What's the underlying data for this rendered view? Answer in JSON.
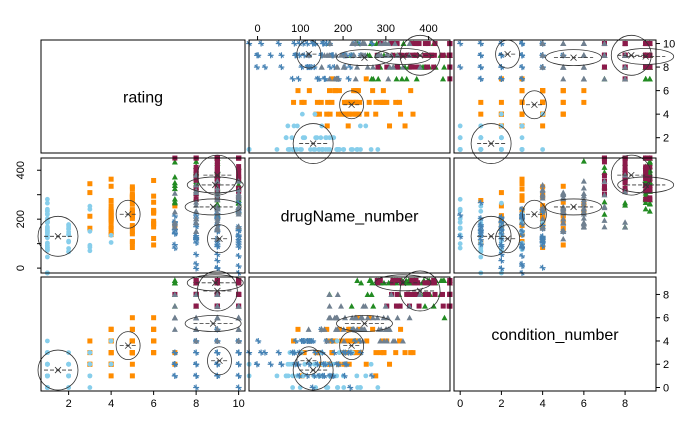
{
  "chart_data": {
    "type": "scatter",
    "variables": [
      "rating",
      "drugName_number",
      "condition_number"
    ],
    "axes": {
      "rating": {
        "ticks": [
          2,
          4,
          6,
          8,
          10
        ],
        "lim": [
          0.7,
          10.3
        ]
      },
      "drugName_number": {
        "ticks": [
          0,
          100,
          200,
          300,
          400
        ],
        "lim": [
          -20,
          450
        ]
      },
      "condition_number": {
        "ticks": [
          0,
          2,
          4,
          6,
          8
        ],
        "lim": [
          -0.3,
          9.5
        ]
      }
    },
    "groups": [
      {
        "color": "#ff8c00",
        "marker": "square",
        "center": {
          "rating": 4.8,
          "drugName_number": 220,
          "condition_number": 3.6
        }
      },
      {
        "color": "#87ceeb",
        "marker": "circle",
        "center": {
          "rating": 1.5,
          "drugName_number": 130,
          "condition_number": 1.5
        }
      },
      {
        "color": "#228b22",
        "marker": "triangle",
        "center": {
          "rating": 8.9,
          "drugName_number": 340,
          "condition_number": 9.0
        }
      },
      {
        "color": "#4682b4",
        "marker": "star",
        "center": {
          "rating": 9.1,
          "drugName_number": 120,
          "condition_number": 2.3
        }
      },
      {
        "color": "#8b1a4a",
        "marker": "square",
        "center": {
          "rating": 9.0,
          "drugName_number": 380,
          "condition_number": 8.3
        }
      },
      {
        "color": "#708090",
        "marker": "triangle",
        "center": {
          "rating": 8.8,
          "drugName_number": 250,
          "condition_number": 5.5
        }
      }
    ]
  }
}
